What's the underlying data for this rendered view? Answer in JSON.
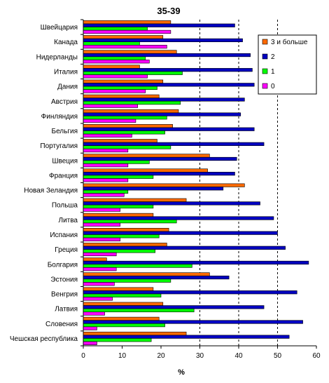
{
  "chart_data": {
    "type": "bar",
    "orientation": "horizontal",
    "title": "35-39",
    "xlabel": "%",
    "ylabel": "",
    "xlim": [
      0,
      60
    ],
    "xticks": [
      0,
      10,
      20,
      30,
      40,
      50,
      60
    ],
    "grid": "dashed vertical lines at 30, 40, 50",
    "legend_position": "right",
    "categories": [
      "Швейцария",
      "Канада",
      "Нидерланды",
      "Италия",
      "Дания",
      "Австрия",
      "Финляндия",
      "Бельгия",
      "Португалия",
      "Швеция",
      "Франция",
      "Новая Зеландия",
      "Польша",
      "Литва",
      "Испания",
      "Греция",
      "Болгария",
      "Эстония",
      "Венгрия",
      "Латвия",
      "Словения",
      "Чешская республика"
    ],
    "series": [
      {
        "name": "3 и больше",
        "color": "#ff6a00",
        "values": [
          22.5,
          20.5,
          24,
          14.5,
          20.5,
          19.5,
          24.5,
          23,
          19,
          32.5,
          32,
          41.5,
          26.5,
          18,
          22,
          21.5,
          6,
          32.5,
          18,
          20.5,
          19.5,
          26.5
        ]
      },
      {
        "name": "2",
        "color": "#0000c0",
        "values": [
          39,
          41,
          43,
          43.5,
          44,
          41.5,
          40.5,
          44,
          46.5,
          39.5,
          39,
          36,
          45.5,
          49,
          50,
          52,
          58,
          37.5,
          55,
          46.5,
          56.5,
          53
        ]
      },
      {
        "name": "1",
        "color": "#00ff00",
        "values": [
          16.5,
          14.5,
          16,
          25.5,
          19,
          25,
          21.5,
          21,
          22.5,
          17,
          18,
          11.5,
          18,
          24,
          19.5,
          18.5,
          28,
          22.5,
          20,
          28.5,
          21,
          17.5
        ]
      },
      {
        "name": "0",
        "color": "#ff00ff",
        "values": [
          22.5,
          21.5,
          17,
          16.5,
          16,
          14,
          13.5,
          12.5,
          11.5,
          11.5,
          11.5,
          10.5,
          9.5,
          9.5,
          9.5,
          8.5,
          8.5,
          8,
          7.5,
          5.5,
          3.5,
          3.5
        ]
      }
    ]
  }
}
